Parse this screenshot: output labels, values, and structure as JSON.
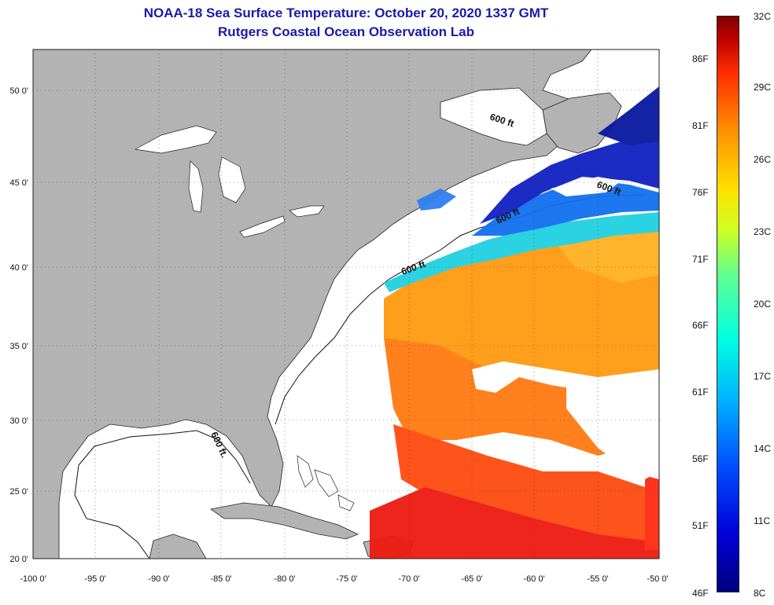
{
  "header": {
    "title": "NOAA-18 Sea Surface Temperature:  October 20, 2020 1337 GMT",
    "subtitle": "Rutgers Coastal Ocean Observation Lab"
  },
  "map": {
    "lon_labels": [
      "-100 0'",
      "-95 0'",
      "-90 0'",
      "-85 0'",
      "-80 0'",
      "-75 0'",
      "-70 0'",
      "-65 0'",
      "-60 0'",
      "-55 0'",
      "-50 0'"
    ],
    "lat_labels": [
      "50 0'",
      "45 0'",
      "40 0'",
      "35 0'",
      "30 0'",
      "25 0'",
      "20 0'"
    ],
    "depth_contour_label": "600 ft.",
    "depth_contour_label_short": "600 ft",
    "land_color": "#b3b3b3",
    "ocean_color": "#ffffff"
  },
  "colorbar": {
    "celsius_labels": [
      "32C",
      "29C",
      "26C",
      "23C",
      "20C",
      "17C",
      "14C",
      "11C",
      "8C"
    ],
    "fahrenheit_labels": [
      "86F",
      "81F",
      "76F",
      "71F",
      "66F",
      "61F",
      "56F",
      "51F",
      "46F"
    ],
    "min_c": 8,
    "max_c": 32
  }
}
